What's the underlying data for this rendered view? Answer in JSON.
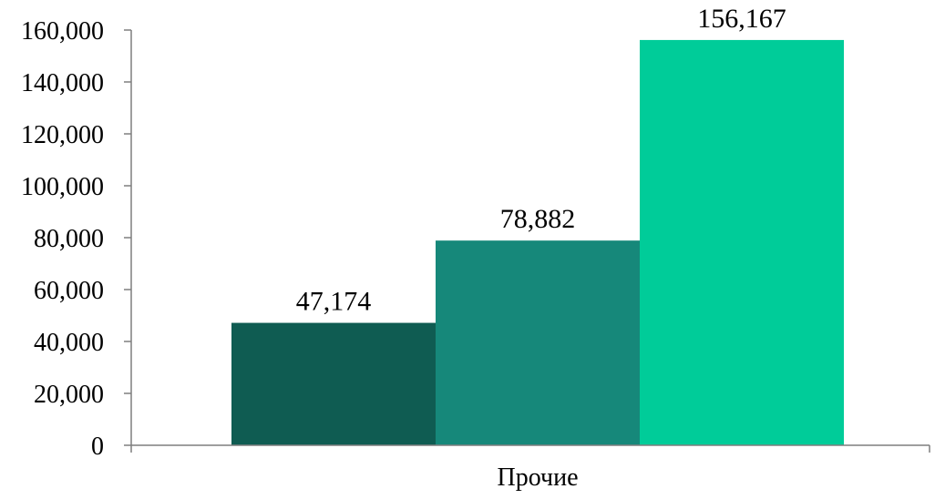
{
  "chart_data": {
    "type": "bar",
    "categories": [
      "Прочие"
    ],
    "series": [
      {
        "values": [
          47174
        ],
        "color": "#0f5c52"
      },
      {
        "values": [
          78882
        ],
        "color": "#16887a"
      },
      {
        "values": [
          156167
        ],
        "color": "#00cc99"
      }
    ],
    "data_labels": [
      "47,174",
      "78,882",
      "156,167"
    ],
    "yticks": [
      "0",
      "20,000",
      "40,000",
      "60,000",
      "80,000",
      "100,000",
      "120,000",
      "140,000",
      "160,000"
    ],
    "ylim": [
      0,
      160000
    ],
    "grid": false,
    "legend": "none",
    "title": "",
    "xlabel": "",
    "ylabel": ""
  }
}
